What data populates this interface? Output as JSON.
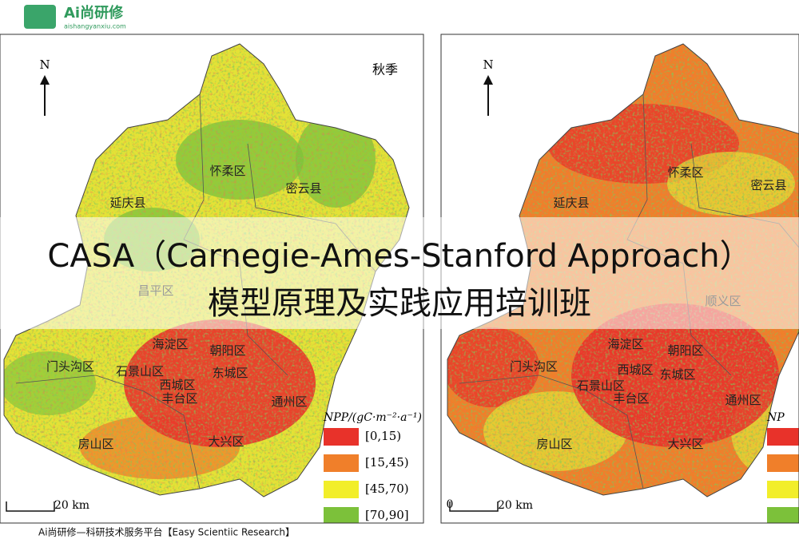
{
  "header": {
    "logo": "Ai尚研修",
    "url": "aishangyanxiu.com"
  },
  "title": {
    "line1": "CASA（Carnegie-Ames-Stanford Approach）",
    "line2": "模型原理及实践应用培训班"
  },
  "maps": [
    {
      "north": "N",
      "season": "秋季",
      "labels": [
        "延庆县",
        "怀柔区",
        "密云县",
        "昌平区",
        "门头沟区",
        "海淀区",
        "朝阳区",
        "石景山区",
        "西城区",
        "东城区",
        "丰台区",
        "通州区",
        "房山区",
        "大兴区"
      ],
      "legend": {
        "title": "NPP/(gC·m⁻²·a⁻¹)",
        "items": [
          {
            "label": "[0,15)",
            "color": "#e8322a"
          },
          {
            "label": "[15,45)",
            "color": "#f07f2a"
          },
          {
            "label": "[45,70)",
            "color": "#f2ee2a"
          },
          {
            "label": "[70,90]",
            "color": "#7cc13a"
          }
        ]
      },
      "scale": "20 km"
    },
    {
      "north": "N",
      "labels": [
        "延庆县",
        "怀柔区",
        "密云县",
        "顺义区",
        "海淀区",
        "朝阳区",
        "门头沟区",
        "西城区",
        "东城区",
        "石景山区",
        "丰台区",
        "通州区",
        "房山区",
        "大兴区"
      ],
      "legend": {
        "title": "NP",
        "items": [
          {
            "color": "#e8322a"
          },
          {
            "color": "#f07f2a"
          },
          {
            "color": "#f2ee2a"
          },
          {
            "color": "#7cc13a"
          }
        ]
      },
      "scale_start": "0",
      "scale": "20 km"
    }
  ],
  "footer": "Ai尚研修—科研技术服务平台【Easy Scientiic Research】"
}
